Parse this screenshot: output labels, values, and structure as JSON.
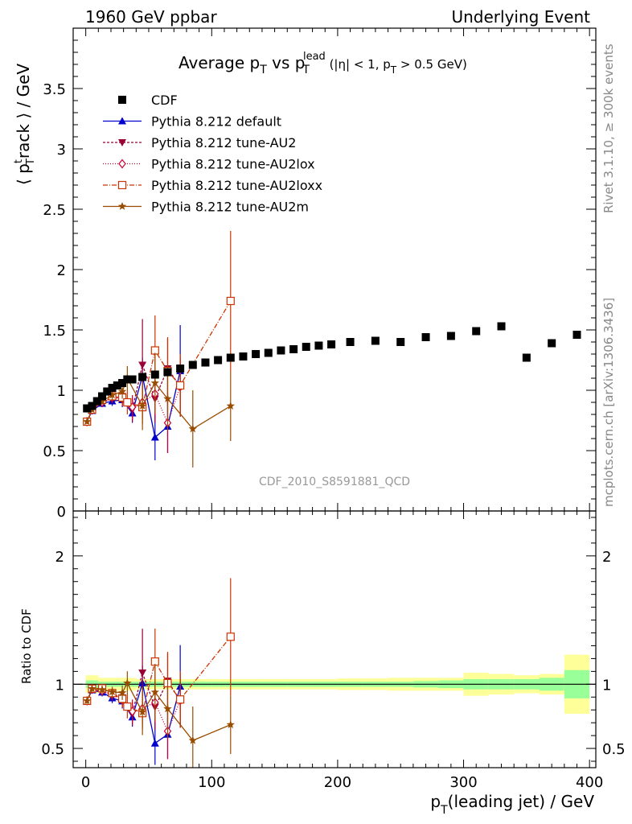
{
  "header": {
    "left": "1960 GeV ppbar",
    "right": "Underlying Event"
  },
  "side_labels": {
    "rivet": "Rivet 3.1.10, ≥ 300k events",
    "source": "mcplots.cern.ch [arXiv:1306.3436]"
  },
  "watermark": "CDF_2010_S8591881_QCD",
  "chart_data": {
    "type": "scatter",
    "title": {
      "prefix": "Average p",
      "sub1": "T",
      "mid": " vs p",
      "sub2": "T",
      "sup2": "lead",
      "suffix": " (|η| < 1, p",
      "sub3": "T",
      "tail": " > 0.5 GeV)"
    },
    "ylabel": {
      "pre": "⟨ p",
      "sup": "t",
      "sub": "T",
      "post": "rack ⟩ / GeV"
    },
    "ratio_ylabel": "Ratio to CDF",
    "xlabel": {
      "pre": "p",
      "sub": "T",
      "post": "(leading jet) / GeV"
    },
    "xlim": [
      -10,
      405
    ],
    "ylim": [
      0,
      4.0
    ],
    "ratio_ylim": [
      0.35,
      2.35
    ],
    "x_ticks": [
      0,
      100,
      200,
      300,
      400
    ],
    "y_ticks": [
      0,
      0.5,
      1,
      1.5,
      2,
      2.5,
      3,
      3.5
    ],
    "y_tick_labels": [
      "0",
      "0.5",
      "1",
      "1.5",
      "2",
      "2.5",
      "3",
      "3.5"
    ],
    "ratio_ticks": [
      0.5,
      1,
      2
    ],
    "ratio_tick_labels": [
      "0.5",
      "1",
      "2"
    ],
    "data": {
      "name": "CDF",
      "color": "#000000",
      "x": [
        1,
        5,
        9,
        13,
        17,
        21,
        25,
        29,
        33,
        37,
        45,
        55,
        65,
        75,
        85,
        95,
        105,
        115,
        125,
        135,
        145,
        155,
        165,
        175,
        185,
        195,
        210,
        230,
        250,
        270,
        290,
        310,
        330,
        350,
        370,
        390
      ],
      "y": [
        0.85,
        0.87,
        0.91,
        0.95,
        0.99,
        1.02,
        1.04,
        1.06,
        1.09,
        1.09,
        1.11,
        1.13,
        1.15,
        1.18,
        1.21,
        1.23,
        1.25,
        1.27,
        1.28,
        1.3,
        1.31,
        1.33,
        1.34,
        1.36,
        1.37,
        1.38,
        1.4,
        1.41,
        1.4,
        1.44,
        1.45,
        1.49,
        1.53,
        1.27,
        1.39,
        1.46
      ],
      "band_edges": [
        0,
        10,
        20,
        30,
        40,
        50,
        60,
        70,
        80,
        90,
        100,
        120,
        140,
        160,
        180,
        200,
        220,
        240,
        260,
        280,
        300,
        320,
        340,
        360,
        380,
        400
      ],
      "band_stat": [
        0.03,
        0.02,
        0.02,
        0.02,
        0.02,
        0.02,
        0.02,
        0.02,
        0.02,
        0.02,
        0.02,
        0.02,
        0.02,
        0.02,
        0.02,
        0.02,
        0.02,
        0.02,
        0.025,
        0.03,
        0.04,
        0.04,
        0.04,
        0.05,
        0.11
      ],
      "band_total": [
        0.07,
        0.05,
        0.05,
        0.05,
        0.04,
        0.04,
        0.04,
        0.04,
        0.04,
        0.04,
        0.04,
        0.04,
        0.04,
        0.04,
        0.04,
        0.045,
        0.045,
        0.05,
        0.05,
        0.05,
        0.09,
        0.08,
        0.07,
        0.08,
        0.23
      ]
    },
    "series": [
      {
        "name": "Pythia 8.212 default",
        "color": "#0000cc",
        "dash": "",
        "marker": "triangle-up",
        "x": [
          1,
          5,
          13,
          21,
          29,
          37,
          45,
          55,
          65,
          75
        ],
        "y": [
          0.74,
          0.83,
          0.89,
          0.91,
          0.92,
          0.81,
          1.12,
          0.61,
          0.7,
          1.16
        ],
        "err": [
          0.02,
          0.02,
          0.03,
          0.04,
          0.06,
          0.08,
          0.15,
          0.19,
          0.22,
          0.38
        ]
      },
      {
        "name": "Pythia 8.212 tune-AU2",
        "color": "#990033",
        "dash": "3,2",
        "marker": "triangle-down",
        "x": [
          1,
          5,
          13,
          21,
          29,
          37,
          45,
          55,
          65,
          75
        ],
        "y": [
          0.74,
          0.83,
          0.9,
          0.93,
          0.95,
          0.84,
          1.21,
          0.93,
          1.18,
          1.03
        ],
        "err": [
          0.02,
          0.02,
          0.03,
          0.04,
          0.07,
          0.1,
          0.38,
          0.2,
          0.25,
          0.25
        ]
      },
      {
        "name": "Pythia 8.212 tune-AU2lox",
        "color": "#cc0033",
        "dash": "1,2",
        "marker": "diamond",
        "x": [
          1,
          5,
          13,
          21,
          29,
          37,
          45,
          55,
          65,
          75
        ],
        "y": [
          0.74,
          0.84,
          0.9,
          0.94,
          0.93,
          0.86,
          0.9,
          0.97,
          0.73,
          1.03
        ],
        "err": [
          0.02,
          0.02,
          0.03,
          0.04,
          0.06,
          0.1,
          0.14,
          0.18,
          0.25,
          0.22
        ]
      },
      {
        "name": "Pythia 8.212 tune-AU2loxx",
        "color": "#cc3300",
        "dash": "6,2,1,2",
        "marker": "square-open",
        "x": [
          1,
          5,
          13,
          21,
          29,
          33,
          45,
          55,
          65,
          75,
          115
        ],
        "y": [
          0.74,
          0.84,
          0.92,
          0.95,
          0.94,
          0.9,
          0.86,
          1.33,
          1.16,
          1.04,
          1.74
        ],
        "err": [
          0.02,
          0.02,
          0.03,
          0.04,
          0.06,
          0.1,
          0.14,
          0.29,
          0.28,
          0.26,
          0.58
        ]
      },
      {
        "name": "Pythia 8.212 tune-AU2m",
        "color": "#994c00",
        "dash": "",
        "marker": "star",
        "x": [
          1,
          5,
          13,
          21,
          29,
          33,
          45,
          55,
          65,
          85,
          115
        ],
        "y": [
          0.74,
          0.84,
          0.91,
          0.96,
          0.99,
          1.1,
          0.87,
          1.06,
          0.93,
          0.68,
          0.87
        ],
        "err": [
          0.02,
          0.02,
          0.03,
          0.04,
          0.06,
          0.1,
          0.2,
          0.25,
          0.26,
          0.32,
          0.29
        ]
      }
    ]
  }
}
